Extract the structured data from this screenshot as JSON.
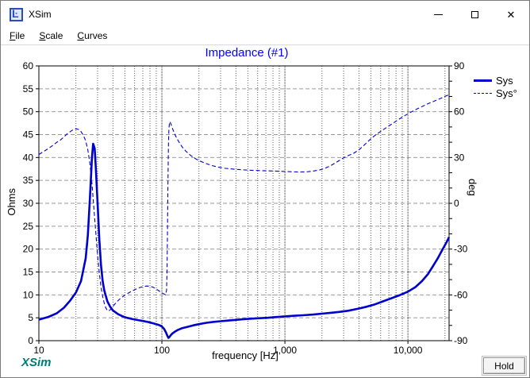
{
  "window": {
    "title": "XSim"
  },
  "menu": {
    "items": [
      {
        "label": "File"
      },
      {
        "label": "Scale"
      },
      {
        "label": "Curves"
      }
    ]
  },
  "watermark": "XSim",
  "hold_button": "Hold",
  "colors": {
    "curve_blue": "#0000cd",
    "title_blue": "#0000ff",
    "grid_h": "#9a9a9a",
    "grid_v_minor": "#5a5a5a",
    "grid_v_major": "#2a2a2a",
    "frame": "#000000",
    "watermark_teal": "#007a7a"
  },
  "chart_data": {
    "type": "line",
    "title": "Impedance (#1)",
    "xlabel": "frequency [Hz]",
    "ylabel_left": "Ohms",
    "ylabel_right": "deg",
    "x_scale": "log",
    "xlim": [
      10,
      21600
    ],
    "ylim_left": [
      0,
      60
    ],
    "ylim_right": [
      -90,
      90
    ],
    "grid": true,
    "x_ticks": [
      {
        "f": 10,
        "label": "10"
      },
      {
        "f": 100,
        "label": "100"
      },
      {
        "f": 1000,
        "label": "1,000"
      },
      {
        "f": 10000,
        "label": "10,000"
      }
    ],
    "y_ticks_left": [
      {
        "v": 0,
        "label": "0"
      },
      {
        "v": 5,
        "label": "5"
      },
      {
        "v": 10,
        "label": "10"
      },
      {
        "v": 15,
        "label": "15"
      },
      {
        "v": 20,
        "label": "20"
      },
      {
        "v": 25,
        "label": "25"
      },
      {
        "v": 30,
        "label": "30"
      },
      {
        "v": 35,
        "label": "35"
      },
      {
        "v": 40,
        "label": "40"
      },
      {
        "v": 45,
        "label": "45"
      },
      {
        "v": 50,
        "label": "50"
      },
      {
        "v": 55,
        "label": "55"
      },
      {
        "v": 60,
        "label": "60"
      }
    ],
    "y_ticks_right": [
      {
        "v": -90,
        "label": "-90"
      },
      {
        "v": -60,
        "label": "-60"
      },
      {
        "v": -30,
        "label": "-30"
      },
      {
        "v": 0,
        "label": "0"
      },
      {
        "v": 30,
        "label": "30"
      },
      {
        "v": 60,
        "label": "60"
      },
      {
        "v": 90,
        "label": "90"
      }
    ],
    "legend": {
      "position": "top-right",
      "entries": [
        {
          "name": "Sys",
          "style": "solid",
          "axis": "left"
        },
        {
          "name": "Sys°",
          "style": "dashed",
          "axis": "right"
        }
      ]
    },
    "series": [
      {
        "name": "Sys",
        "axis": "left",
        "style": "solid",
        "width": 2.6,
        "color": "#0000cd",
        "points": [
          [
            10,
            4.6
          ],
          [
            12,
            5.2
          ],
          [
            14,
            6.0
          ],
          [
            16,
            7.2
          ],
          [
            18,
            8.8
          ],
          [
            20,
            10.5
          ],
          [
            22,
            13
          ],
          [
            24,
            18
          ],
          [
            25,
            23
          ],
          [
            26,
            31
          ],
          [
            27,
            40
          ],
          [
            27.6,
            43
          ],
          [
            28.4,
            42
          ],
          [
            29,
            38
          ],
          [
            30,
            30
          ],
          [
            31,
            22
          ],
          [
            32,
            16.5
          ],
          [
            33,
            13
          ],
          [
            34,
            11
          ],
          [
            36,
            8.6
          ],
          [
            38,
            7.4
          ],
          [
            40,
            6.6
          ],
          [
            44,
            5.8
          ],
          [
            48,
            5.3
          ],
          [
            52,
            5.0
          ],
          [
            58,
            4.7
          ],
          [
            64,
            4.5
          ],
          [
            70,
            4.3
          ],
          [
            78,
            4.05
          ],
          [
            86,
            3.75
          ],
          [
            94,
            3.45
          ],
          [
            100,
            3.1
          ],
          [
            104,
            2.6
          ],
          [
            108,
            1.8
          ],
          [
            111,
            1.0
          ],
          [
            113,
            0.6
          ],
          [
            115,
            0.8
          ],
          [
            118,
            1.2
          ],
          [
            122,
            1.6
          ],
          [
            128,
            2.0
          ],
          [
            135,
            2.35
          ],
          [
            145,
            2.7
          ],
          [
            160,
            3.0
          ],
          [
            180,
            3.35
          ],
          [
            200,
            3.6
          ],
          [
            230,
            3.9
          ],
          [
            260,
            4.1
          ],
          [
            300,
            4.25
          ],
          [
            350,
            4.4
          ],
          [
            400,
            4.55
          ],
          [
            460,
            4.7
          ],
          [
            530,
            4.8
          ],
          [
            620,
            4.9
          ],
          [
            720,
            5.0
          ],
          [
            840,
            5.15
          ],
          [
            1000,
            5.3
          ],
          [
            1200,
            5.45
          ],
          [
            1400,
            5.55
          ],
          [
            1700,
            5.7
          ],
          [
            2000,
            5.9
          ],
          [
            2400,
            6.1
          ],
          [
            2800,
            6.3
          ],
          [
            3300,
            6.55
          ],
          [
            3900,
            6.95
          ],
          [
            4600,
            7.4
          ],
          [
            5400,
            7.95
          ],
          [
            6300,
            8.6
          ],
          [
            7400,
            9.3
          ],
          [
            8600,
            9.95
          ],
          [
            10000,
            10.7
          ],
          [
            11500,
            11.7
          ],
          [
            13000,
            13.0
          ],
          [
            14500,
            14.5
          ],
          [
            16000,
            16.3
          ],
          [
            17500,
            18.0
          ],
          [
            19000,
            19.8
          ],
          [
            20500,
            21.4
          ],
          [
            21600,
            22.6
          ]
        ]
      },
      {
        "name": "Sys°",
        "axis": "right",
        "style": "dashed",
        "width": 1.1,
        "color": "#0000cd",
        "points": [
          [
            10,
            32
          ],
          [
            11,
            34
          ],
          [
            12,
            36
          ],
          [
            13,
            38
          ],
          [
            14,
            40
          ],
          [
            15,
            41.5
          ],
          [
            16,
            43.5
          ],
          [
            17,
            45.5
          ],
          [
            18,
            47
          ],
          [
            19,
            48.2
          ],
          [
            20,
            48.8
          ],
          [
            21,
            48.4
          ],
          [
            22,
            47
          ],
          [
            23,
            44.5
          ],
          [
            24,
            41
          ],
          [
            25,
            35
          ],
          [
            26,
            26
          ],
          [
            27,
            13
          ],
          [
            28,
            -3
          ],
          [
            29,
            -19
          ],
          [
            30,
            -34
          ],
          [
            31,
            -46
          ],
          [
            32,
            -55
          ],
          [
            33,
            -61
          ],
          [
            34,
            -65.5
          ],
          [
            35,
            -68.5
          ],
          [
            36,
            -70.3
          ],
          [
            37,
            -70.5
          ],
          [
            38,
            -69.8
          ],
          [
            40,
            -67.5
          ],
          [
            43,
            -64.5
          ],
          [
            46,
            -62.3
          ],
          [
            50,
            -60.2
          ],
          [
            55,
            -58.2
          ],
          [
            60,
            -56.6
          ],
          [
            65,
            -55.4
          ],
          [
            70,
            -54.6
          ],
          [
            75,
            -54.2
          ],
          [
            80,
            -54.3
          ],
          [
            85,
            -55
          ],
          [
            90,
            -56.2
          ],
          [
            95,
            -57.5
          ],
          [
            100,
            -58.6
          ],
          [
            104,
            -59.4
          ],
          [
            107,
            -60
          ],
          [
            109,
            -57
          ],
          [
            110,
            -45
          ],
          [
            111,
            -18
          ],
          [
            112,
            15
          ],
          [
            113,
            38
          ],
          [
            114,
            49
          ],
          [
            115.5,
            53.5
          ],
          [
            117,
            53
          ],
          [
            119,
            51.5
          ],
          [
            122,
            49
          ],
          [
            126,
            46
          ],
          [
            131,
            43.2
          ],
          [
            138,
            40
          ],
          [
            146,
            37
          ],
          [
            156,
            34.3
          ],
          [
            170,
            31.5
          ],
          [
            185,
            29.5
          ],
          [
            200,
            28
          ],
          [
            225,
            26.2
          ],
          [
            255,
            24.7
          ],
          [
            290,
            23.6
          ],
          [
            330,
            22.9
          ],
          [
            380,
            22.4
          ],
          [
            440,
            22
          ],
          [
            510,
            21.7
          ],
          [
            600,
            21.5
          ],
          [
            700,
            21.3
          ],
          [
            820,
            21.1
          ],
          [
            950,
            20.9
          ],
          [
            1100,
            20.7
          ],
          [
            1300,
            20.5
          ],
          [
            1500,
            20.6
          ],
          [
            1700,
            21.1
          ],
          [
            1900,
            21.8
          ],
          [
            2100,
            22.8
          ],
          [
            2400,
            25
          ],
          [
            2700,
            27.5
          ],
          [
            3000,
            29.8
          ],
          [
            3300,
            31.4
          ],
          [
            3600,
            32.6
          ],
          [
            4000,
            35
          ],
          [
            4500,
            38.8
          ],
          [
            5000,
            42.3
          ],
          [
            5500,
            45
          ],
          [
            6100,
            47.5
          ],
          [
            6800,
            50
          ],
          [
            7600,
            52.6
          ],
          [
            8500,
            55.2
          ],
          [
            9500,
            57.6
          ],
          [
            10600,
            59.8
          ],
          [
            12000,
            62
          ],
          [
            13500,
            64
          ],
          [
            15000,
            65.7
          ],
          [
            17000,
            67.5
          ],
          [
            19000,
            69.2
          ],
          [
            21600,
            71.2
          ]
        ]
      }
    ]
  }
}
